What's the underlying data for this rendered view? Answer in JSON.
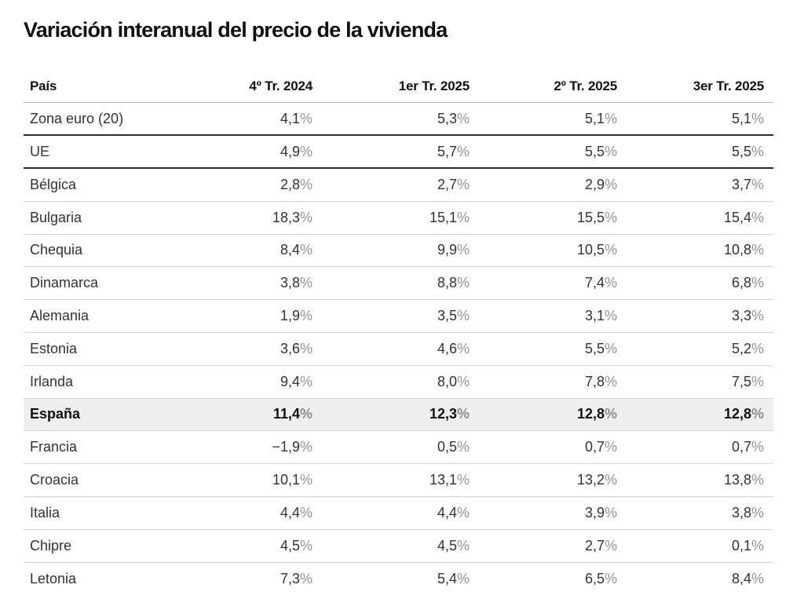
{
  "title": "Variación interanual del precio de la vivienda",
  "table": {
    "columns": [
      "País",
      "4º Tr. 2024",
      "1er Tr. 2025",
      "2º Tr. 2025",
      "3er Tr. 2025"
    ],
    "percent_suffix": "%",
    "rows": [
      {
        "country": "Zona euro (20)",
        "values": [
          "4,1",
          "5,3",
          "5,1",
          "5,1"
        ],
        "divider": "dark",
        "highlight": false
      },
      {
        "country": "UE",
        "values": [
          "4,9",
          "5,7",
          "5,5",
          "5,5"
        ],
        "divider": "dark",
        "highlight": false
      },
      {
        "country": "Bélgica",
        "values": [
          "2,8",
          "2,7",
          "2,9",
          "3,7"
        ],
        "divider": "light",
        "highlight": false
      },
      {
        "country": "Bulgaria",
        "values": [
          "18,3",
          "15,1",
          "15,5",
          "15,4"
        ],
        "divider": "light",
        "highlight": false
      },
      {
        "country": "Chequia",
        "values": [
          "8,4",
          "9,9",
          "10,5",
          "10,8"
        ],
        "divider": "light",
        "highlight": false
      },
      {
        "country": "Dinamarca",
        "values": [
          "3,8",
          "8,8",
          "7,4",
          "6,8"
        ],
        "divider": "light",
        "highlight": false
      },
      {
        "country": "Alemania",
        "values": [
          "1,9",
          "3,5",
          "3,1",
          "3,3"
        ],
        "divider": "light",
        "highlight": false
      },
      {
        "country": "Estonia",
        "values": [
          "3,6",
          "4,6",
          "5,5",
          "5,2"
        ],
        "divider": "light",
        "highlight": false
      },
      {
        "country": "Irlanda",
        "values": [
          "9,4",
          "8,0",
          "7,8",
          "7,5"
        ],
        "divider": "light",
        "highlight": false
      },
      {
        "country": "España",
        "values": [
          "11,4",
          "12,3",
          "12,8",
          "12,8"
        ],
        "divider": "light",
        "highlight": true
      },
      {
        "country": "Francia",
        "values": [
          "−1,9",
          "0,5",
          "0,7",
          "0,7"
        ],
        "divider": "light",
        "highlight": false
      },
      {
        "country": "Croacia",
        "values": [
          "10,1",
          "13,1",
          "13,2",
          "13,8"
        ],
        "divider": "light",
        "highlight": false
      },
      {
        "country": "Italia",
        "values": [
          "4,4",
          "4,4",
          "3,9",
          "3,8"
        ],
        "divider": "light",
        "highlight": false
      },
      {
        "country": "Chipre",
        "values": [
          "4,5",
          "4,5",
          "2,7",
          "0,1"
        ],
        "divider": "light",
        "highlight": false
      },
      {
        "country": "Letonia",
        "values": [
          "7,3",
          "5,4",
          "6,5",
          "8,4"
        ],
        "divider": "none",
        "highlight": false
      }
    ]
  },
  "colors": {
    "title_text": "#0f0f0f",
    "body_text": "#333333",
    "percent_sign": "#949494",
    "divider_light": "#d4d4d4",
    "divider_dark": "#2e2e2e",
    "header_divider": "#b8b8b8",
    "highlight_row_background": "#efefef"
  },
  "chart_data": {
    "type": "table",
    "title": "Variación interanual del precio de la vivienda",
    "columns": [
      "País",
      "4º Tr. 2024",
      "1er Tr. 2025",
      "2º Tr. 2025",
      "3er Tr. 2025"
    ],
    "categories": [
      "Zona euro (20)",
      "UE",
      "Bélgica",
      "Bulgaria",
      "Chequia",
      "Dinamarca",
      "Alemania",
      "Estonia",
      "Irlanda",
      "España",
      "Francia",
      "Croacia",
      "Italia",
      "Chipre",
      "Letonia"
    ],
    "series": [
      {
        "name": "4º Tr. 2024",
        "values": [
          4.1,
          4.9,
          2.8,
          18.3,
          8.4,
          3.8,
          1.9,
          3.6,
          9.4,
          11.4,
          -1.9,
          10.1,
          4.4,
          4.5,
          7.3
        ]
      },
      {
        "name": "1er Tr. 2025",
        "values": [
          5.3,
          5.7,
          2.7,
          15.1,
          9.9,
          8.8,
          3.5,
          4.6,
          8.0,
          12.3,
          0.5,
          13.1,
          4.4,
          4.5,
          5.4
        ]
      },
      {
        "name": "2º Tr. 2025",
        "values": [
          5.1,
          5.5,
          2.9,
          15.5,
          10.5,
          7.4,
          3.1,
          5.5,
          7.8,
          12.8,
          0.7,
          13.2,
          3.9,
          2.7,
          6.5
        ]
      },
      {
        "name": "3er Tr. 2025",
        "values": [
          5.1,
          5.5,
          3.7,
          15.4,
          10.8,
          6.8,
          3.3,
          5.2,
          7.5,
          12.8,
          0.7,
          13.8,
          3.8,
          0.1,
          8.4
        ]
      }
    ],
    "unit": "%",
    "highlighted_row": "España",
    "layout_hints": {
      "value_alignment": "right",
      "dark_dividers_after": [
        "Zona euro (20)",
        "UE"
      ],
      "bottom_row_cut_off": true
    }
  }
}
